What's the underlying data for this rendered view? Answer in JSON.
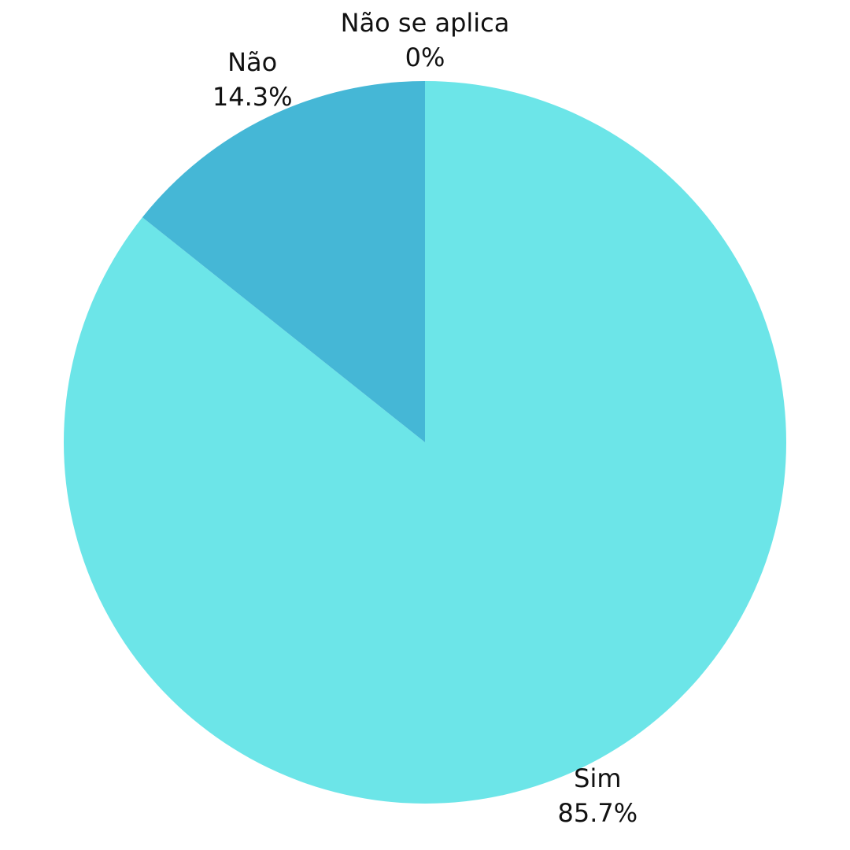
{
  "chart_data": {
    "type": "pie",
    "title": "",
    "slices": [
      {
        "label": "Sim",
        "value": 85.7,
        "value_label": "85.7%",
        "color": "#6ce5e8"
      },
      {
        "label": "Não",
        "value": 14.3,
        "value_label": "14.3%",
        "color": "#45b7d6"
      },
      {
        "label": "Não se aplica",
        "value": 0,
        "value_label": "0%",
        "color": "#3fa0c7"
      }
    ],
    "start_angle": "12 o'clock",
    "direction": "clockwise",
    "legend": "none"
  }
}
